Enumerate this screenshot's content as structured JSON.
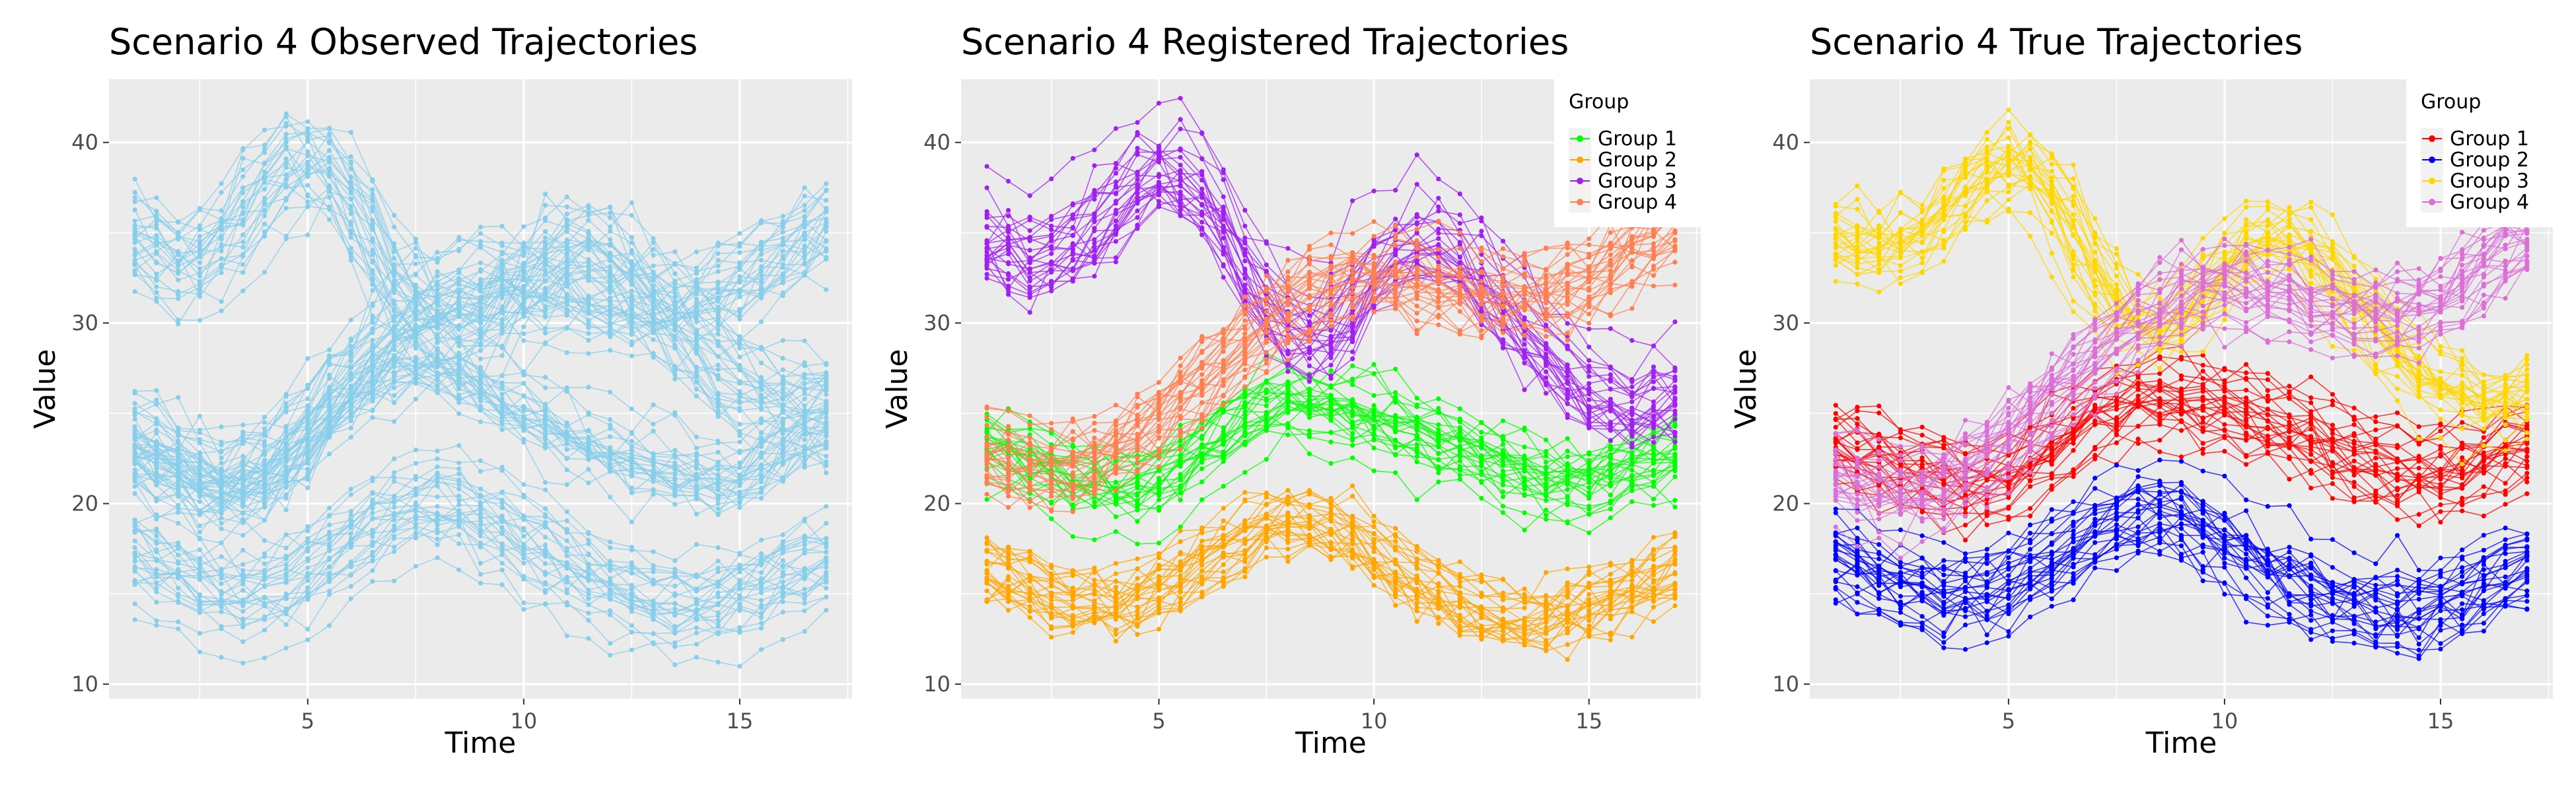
{
  "chart_data": [
    {
      "type": "line",
      "title": "Scenario 4 Observed Trajectories",
      "xlabel": "Time",
      "ylabel": "Value",
      "xlim": [
        0.4,
        17.6
      ],
      "ylim": [
        9.2,
        43.5
      ],
      "x_ticks": [
        5,
        10,
        15
      ],
      "y_ticks": [
        10,
        20,
        30,
        40
      ],
      "grid": true,
      "legend": null,
      "color": "#87CEEB",
      "series": [
        {
          "x": [
            1,
            2,
            3,
            4,
            5,
            6,
            7,
            8,
            9,
            10,
            11,
            12,
            13,
            14,
            15,
            16,
            17
          ],
          "center": [
            23.2,
            22.0,
            20.8,
            21.4,
            23.6,
            26.2,
            27.8,
            28.2,
            27.0,
            25.5,
            24.3,
            23.2,
            22.5,
            21.8,
            21.6,
            23.0,
            24.5
          ],
          "band": 2.2
        },
        {
          "x": [
            1,
            2,
            3,
            4,
            5,
            6,
            7,
            8,
            9,
            10,
            11,
            12,
            13,
            14,
            15,
            16,
            17
          ],
          "center": [
            17.0,
            15.6,
            14.6,
            14.6,
            15.8,
            17.6,
            19.2,
            19.8,
            19.0,
            17.6,
            16.2,
            15.0,
            14.2,
            14.0,
            14.6,
            15.6,
            16.6
          ],
          "band": 2.0
        },
        {
          "x": [
            1,
            2,
            3,
            4,
            5,
            6,
            7,
            8,
            9,
            10,
            11,
            12,
            13,
            14,
            15,
            16,
            17
          ],
          "center": [
            35.0,
            33.0,
            34.2,
            37.4,
            39.2,
            37.0,
            32.0,
            29.2,
            29.4,
            32.2,
            34.4,
            34.0,
            31.2,
            28.4,
            26.4,
            25.4,
            26.0
          ],
          "band": 2.4
        },
        {
          "x": [
            1,
            2,
            3,
            4,
            5,
            6,
            7,
            8,
            9,
            10,
            11,
            12,
            13,
            14,
            15,
            16,
            17
          ],
          "center": [
            23.5,
            22.0,
            21.0,
            21.5,
            23.8,
            26.8,
            29.6,
            31.2,
            32.0,
            31.8,
            31.0,
            30.6,
            30.6,
            31.0,
            32.0,
            33.6,
            35.2
          ],
          "band": 2.2
        }
      ]
    },
    {
      "type": "line",
      "title": "Scenario 4 Registered Trajectories",
      "xlabel": "Time",
      "ylabel": "Value",
      "xlim": [
        0.4,
        17.6
      ],
      "ylim": [
        9.2,
        43.5
      ],
      "x_ticks": [
        5,
        10,
        15
      ],
      "y_ticks": [
        10,
        20,
        30,
        40
      ],
      "grid": true,
      "legend": "top-right",
      "legend_title": "Group",
      "series": [
        {
          "name": "Group 1",
          "color": "#00FF00",
          "x": [
            1,
            2,
            3,
            4,
            5,
            6,
            7,
            8,
            9,
            10,
            11,
            12,
            13,
            14,
            15,
            16,
            17
          ],
          "center": [
            23.4,
            22.6,
            21.6,
            21.0,
            21.6,
            23.2,
            25.0,
            25.8,
            25.6,
            25.0,
            24.2,
            23.4,
            22.4,
            21.6,
            21.4,
            22.2,
            23.0
          ],
          "band": 2.0
        },
        {
          "name": "Group 2",
          "color": "#FFA500",
          "x": [
            1,
            2,
            3,
            4,
            5,
            6,
            7,
            8,
            9,
            10,
            11,
            12,
            13,
            14,
            15,
            16,
            17
          ],
          "center": [
            17.0,
            15.8,
            15.0,
            14.8,
            15.6,
            17.0,
            18.6,
            19.6,
            19.2,
            17.8,
            16.2,
            15.0,
            14.2,
            14.0,
            14.6,
            15.6,
            16.6
          ],
          "band": 2.0
        },
        {
          "name": "Group 3",
          "color": "#A020F0",
          "x": [
            1,
            2,
            3,
            4,
            5,
            6,
            7,
            8,
            9,
            10,
            11,
            12,
            13,
            14,
            15,
            16,
            17
          ],
          "center": [
            35.0,
            33.6,
            34.6,
            37.2,
            39.0,
            37.4,
            33.0,
            29.4,
            29.8,
            33.4,
            34.6,
            34.0,
            31.0,
            28.4,
            26.4,
            25.6,
            26.2
          ],
          "band": 2.4
        },
        {
          "name": "Group 4",
          "color": "#FF7F50",
          "x": [
            1,
            2,
            3,
            4,
            5,
            6,
            7,
            8,
            9,
            10,
            11,
            12,
            13,
            14,
            15,
            16,
            17
          ],
          "center": [
            22.0,
            21.2,
            21.2,
            22.4,
            24.2,
            26.4,
            28.4,
            30.4,
            31.6,
            32.0,
            31.6,
            31.0,
            30.8,
            31.0,
            31.8,
            33.4,
            35.2
          ],
          "band": 2.2
        }
      ]
    },
    {
      "type": "line",
      "title": "Scenario 4 True Trajectories",
      "xlabel": "Time",
      "ylabel": "Value",
      "xlim": [
        0.4,
        17.6
      ],
      "ylim": [
        9.2,
        43.5
      ],
      "x_ticks": [
        5,
        10,
        15
      ],
      "y_ticks": [
        10,
        20,
        30,
        40
      ],
      "grid": true,
      "legend": "top-right",
      "legend_title": "Group",
      "series": [
        {
          "name": "Group 1",
          "color": "#FF0000",
          "x": [
            1,
            2,
            3,
            4,
            5,
            6,
            7,
            8,
            9,
            10,
            11,
            12,
            13,
            14,
            15,
            16,
            17
          ],
          "center": [
            23.2,
            22.4,
            21.6,
            21.0,
            21.4,
            23.0,
            24.8,
            25.8,
            25.8,
            25.2,
            24.4,
            23.6,
            22.6,
            21.8,
            21.6,
            22.4,
            23.4
          ],
          "band": 2.0
        },
        {
          "name": "Group 2",
          "color": "#0000FF",
          "x": [
            1,
            2,
            3,
            4,
            5,
            6,
            7,
            8,
            9,
            10,
            11,
            12,
            13,
            14,
            15,
            16,
            17
          ],
          "center": [
            17.0,
            15.8,
            15.0,
            14.8,
            15.6,
            17.0,
            18.6,
            19.6,
            19.2,
            17.8,
            16.2,
            15.0,
            14.2,
            14.0,
            14.6,
            15.6,
            16.6
          ],
          "band": 2.0
        },
        {
          "name": "Group 3",
          "color": "#FFD700",
          "x": [
            1,
            2,
            3,
            4,
            5,
            6,
            7,
            8,
            9,
            10,
            11,
            12,
            13,
            14,
            15,
            16,
            17
          ],
          "center": [
            35.0,
            33.6,
            34.8,
            37.4,
            39.2,
            37.2,
            32.4,
            29.6,
            30.0,
            33.2,
            34.8,
            34.2,
            31.0,
            28.4,
            26.4,
            25.4,
            26.0
          ],
          "band": 2.4
        },
        {
          "name": "Group 4",
          "color": "#DA70D6",
          "x": [
            1,
            2,
            3,
            4,
            5,
            6,
            7,
            8,
            9,
            10,
            11,
            12,
            13,
            14,
            15,
            16,
            17
          ],
          "center": [
            22.0,
            21.0,
            21.0,
            22.2,
            24.2,
            26.6,
            28.8,
            30.8,
            32.0,
            32.6,
            32.2,
            31.4,
            31.0,
            31.0,
            31.8,
            33.6,
            35.4
          ],
          "band": 2.2
        }
      ]
    }
  ]
}
